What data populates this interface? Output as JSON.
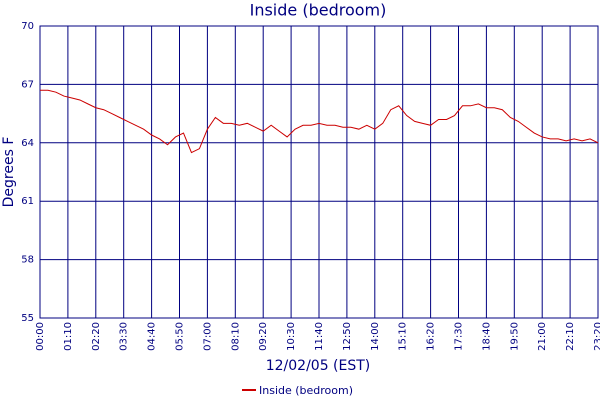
{
  "chart_data": {
    "type": "line",
    "title": "Inside (bedroom)",
    "x_label": "12/02/05 (EST)",
    "y_label": "Degrees F",
    "x": [
      0,
      20,
      40,
      60,
      80,
      100,
      120,
      140,
      160,
      180,
      200,
      220,
      240,
      260,
      280,
      300,
      320,
      340,
      360,
      380,
      400,
      420,
      440,
      460,
      480,
      500,
      520,
      540,
      560,
      580,
      600,
      620,
      640,
      660,
      680,
      700,
      720,
      740,
      760,
      780,
      800,
      820,
      840,
      860,
      880,
      900,
      920,
      940,
      960,
      980,
      1000,
      1020,
      1040,
      1060,
      1080,
      1100,
      1120,
      1140,
      1160,
      1180,
      1200,
      1220,
      1240,
      1260,
      1280,
      1300,
      1320,
      1340,
      1360,
      1380,
      1400
    ],
    "series": [
      {
        "name": "Inside (bedroom)",
        "color": "#cc0000",
        "values": [
          66.7,
          66.7,
          66.6,
          66.4,
          66.3,
          66.2,
          66.0,
          65.8,
          65.7,
          65.5,
          65.3,
          65.1,
          64.9,
          64.7,
          64.4,
          64.2,
          63.9,
          64.3,
          64.5,
          63.5,
          63.7,
          64.7,
          65.3,
          65.0,
          65.0,
          64.9,
          65.0,
          64.8,
          64.6,
          64.9,
          64.6,
          64.3,
          64.7,
          64.9,
          64.9,
          65.0,
          64.9,
          64.9,
          64.8,
          64.8,
          64.7,
          64.9,
          64.7,
          65.0,
          65.7,
          65.9,
          65.4,
          65.1,
          65.0,
          64.9,
          65.2,
          65.2,
          65.4,
          65.9,
          65.9,
          66.0,
          65.8,
          65.8,
          65.7,
          65.3,
          65.1,
          64.8,
          64.5,
          64.3,
          64.2,
          64.2,
          64.1,
          64.2,
          64.1,
          64.2,
          64.0
        ]
      }
    ],
    "xlim": [
      0,
      1400
    ],
    "xticks": [
      {
        "value": 0,
        "label": "00:00"
      },
      {
        "value": 70,
        "label": "01:10"
      },
      {
        "value": 140,
        "label": "02:20"
      },
      {
        "value": 210,
        "label": "03:30"
      },
      {
        "value": 280,
        "label": "04:40"
      },
      {
        "value": 350,
        "label": "05:50"
      },
      {
        "value": 420,
        "label": "07:00"
      },
      {
        "value": 490,
        "label": "08:10"
      },
      {
        "value": 560,
        "label": "09:20"
      },
      {
        "value": 630,
        "label": "10:30"
      },
      {
        "value": 700,
        "label": "11:40"
      },
      {
        "value": 770,
        "label": "12:50"
      },
      {
        "value": 840,
        "label": "14:00"
      },
      {
        "value": 910,
        "label": "15:10"
      },
      {
        "value": 980,
        "label": "16:20"
      },
      {
        "value": 1050,
        "label": "17:30"
      },
      {
        "value": 1120,
        "label": "18:40"
      },
      {
        "value": 1190,
        "label": "19:50"
      },
      {
        "value": 1260,
        "label": "21:00"
      },
      {
        "value": 1330,
        "label": "22:10"
      },
      {
        "value": 1400,
        "label": "23:20"
      }
    ],
    "ylim": [
      55,
      70
    ],
    "yticks": [
      55,
      58,
      61,
      64,
      67,
      70
    ],
    "grid": true,
    "grid_color": "#000080",
    "legend": "bottom"
  }
}
